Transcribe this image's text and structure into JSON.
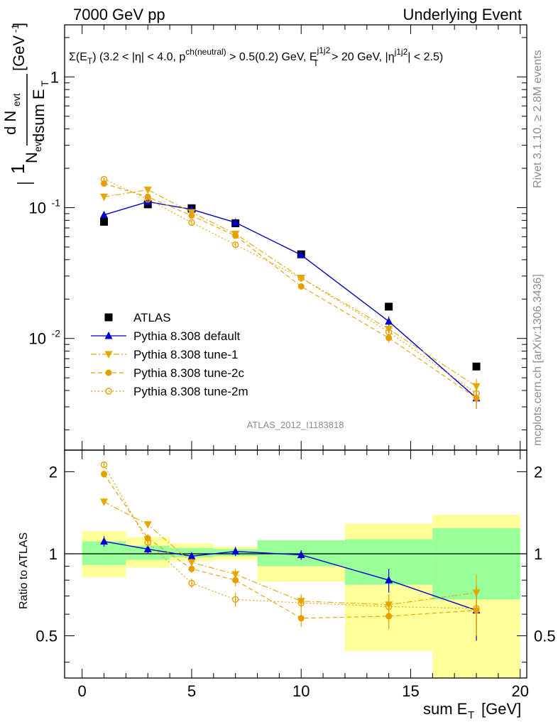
{
  "header": {
    "left": "7000 GeV pp",
    "right": "Underlying Event"
  },
  "side": {
    "rivet": "Rivet 3.1.10, ≥ 2.8M events",
    "mcplots": "mcplots.cern.ch [arXiv:1306.3436]"
  },
  "plot": {
    "condition": "Σ(E_T) (3.2 < |η| < 4.0, p^ch(neutral) > 0.5(0.2) GeV, E_T^j1j2 > 20 GeV, |η^j1j2| < 2.5)",
    "watermark": "ATLAS_2012_I1183818",
    "ylabel": "1/N_evt dN_evt/dsum E_T [GeV^-1]",
    "ratio_ylabel": "Ratio to ATLAS",
    "xlabel": "sum E_T [GeV]"
  },
  "chart_data": [
    {
      "type": "scatter",
      "panel": "main",
      "yscale": "log",
      "xlim": [
        -0.8,
        20.3
      ],
      "ylim": [
        0.0014,
        2.5
      ],
      "x_ticks": [
        0,
        5,
        10,
        15,
        20
      ],
      "y_ticks": [
        "10^-2",
        "10^-1",
        "1"
      ],
      "legend_position": "center-left",
      "series": [
        {
          "name": "ATLAS",
          "color": "#000000",
          "marker": "square",
          "x": [
            1,
            3,
            5,
            7,
            10,
            14,
            18
          ],
          "y": [
            0.078,
            0.106,
            0.099,
            0.076,
            0.044,
            0.0175,
            0.0061
          ],
          "yerr": [
            0.003,
            0.003,
            0.003,
            0.002,
            0.0015,
            0.0007,
            0.0003
          ]
        },
        {
          "name": "Pythia 8.308 default",
          "color": "#0000cc",
          "marker": "triangle-up",
          "line": "solid",
          "x": [
            1,
            3,
            5,
            7,
            10,
            14,
            18
          ],
          "y": [
            0.088,
            0.111,
            0.097,
            0.077,
            0.0435,
            0.0135,
            0.0035
          ],
          "yerr": [
            0.005,
            0.004,
            0.003,
            0.002,
            0.002,
            0.0012,
            0.0006
          ]
        },
        {
          "name": "Pythia 8.308 tune-1",
          "color": "#e5a800",
          "marker": "triangle-down",
          "line": "dashdot",
          "x": [
            1,
            3,
            5,
            7,
            10,
            14,
            18
          ],
          "y": [
            0.121,
            0.137,
            0.092,
            0.063,
            0.029,
            0.0118,
            0.0043
          ],
          "yerr": [
            0.004,
            0.004,
            0.003,
            0.002,
            0.0012,
            0.0008,
            0.0006
          ]
        },
        {
          "name": "Pythia 8.308 tune-2c",
          "color": "#e5a000",
          "marker": "circle",
          "line": "dashed",
          "x": [
            1,
            3,
            5,
            7,
            10,
            14,
            18
          ],
          "y": [
            0.153,
            0.121,
            0.087,
            0.061,
            0.025,
            0.0101,
            0.0035
          ],
          "yerr": [
            0.005,
            0.004,
            0.003,
            0.002,
            0.0012,
            0.0008,
            0.0006
          ]
        },
        {
          "name": "Pythia 8.308 tune-2m",
          "color": "#e5a000",
          "marker": "open-circle",
          "line": "dotted",
          "x": [
            1,
            3,
            5,
            7,
            10,
            14,
            18
          ],
          "y": [
            0.165,
            0.116,
            0.077,
            0.052,
            0.029,
            0.0112,
            0.0038
          ],
          "yerr": [
            0.005,
            0.004,
            0.003,
            0.002,
            0.0012,
            0.0008,
            0.0006
          ]
        }
      ]
    },
    {
      "type": "scatter",
      "panel": "ratio",
      "xlim": [
        -0.8,
        20.3
      ],
      "ylim": [
        0.35,
        2.4
      ],
      "y_ticks": [
        0.5,
        1,
        2
      ],
      "reference_line": 1,
      "bands": [
        {
          "x0": 0,
          "x1": 2,
          "inner": [
            0.91,
            1.11
          ],
          "outer": [
            0.82,
            1.21
          ]
        },
        {
          "x0": 2,
          "x1": 4,
          "inner": [
            0.95,
            1.07
          ],
          "outer": [
            0.89,
            1.15
          ]
        },
        {
          "x0": 4,
          "x1": 6,
          "inner": [
            0.97,
            1.05
          ],
          "outer": [
            0.94,
            1.09
          ]
        },
        {
          "x0": 6,
          "x1": 8,
          "inner": [
            0.98,
            1.04
          ],
          "outer": [
            0.95,
            1.06
          ]
        },
        {
          "x0": 8,
          "x1": 12,
          "inner": [
            0.9,
            1.12
          ],
          "outer": [
            0.79,
            1.12
          ]
        },
        {
          "x0": 12,
          "x1": 16,
          "inner": [
            0.77,
            1.13
          ],
          "outer": [
            0.44,
            1.29
          ]
        },
        {
          "x0": 16,
          "x1": 20,
          "inner": [
            0.68,
            1.24
          ],
          "outer": [
            0.35,
            1.39
          ]
        }
      ],
      "series": [
        {
          "name": "Pythia 8.308 default",
          "color": "#0000cc",
          "marker": "triangle-up",
          "line": "solid",
          "x": [
            1,
            3,
            5,
            7,
            10,
            14,
            18
          ],
          "y": [
            1.11,
            1.04,
            0.98,
            1.02,
            0.99,
            0.8,
            0.62
          ],
          "yerr": [
            0.05,
            0.04,
            0.03,
            0.04,
            0.04,
            0.08,
            0.14
          ]
        },
        {
          "name": "Pythia 8.308 tune-1",
          "color": "#e5a800",
          "marker": "triangle-down",
          "line": "dashdot",
          "x": [
            1,
            3,
            5,
            7,
            10,
            14,
            18
          ],
          "y": [
            1.55,
            1.28,
            0.93,
            0.84,
            0.67,
            0.65,
            0.72
          ],
          "yerr": [
            0.05,
            0.04,
            0.03,
            0.04,
            0.04,
            0.06,
            0.12
          ]
        },
        {
          "name": "Pythia 8.308 tune-2c",
          "color": "#e5a000",
          "marker": "circle",
          "line": "dashed",
          "x": [
            1,
            3,
            5,
            7,
            10,
            14,
            18
          ],
          "y": [
            1.96,
            1.14,
            0.88,
            0.8,
            0.58,
            0.59,
            0.62
          ],
          "yerr": [
            0.06,
            0.04,
            0.03,
            0.04,
            0.04,
            0.06,
            0.12
          ]
        },
        {
          "name": "Pythia 8.308 tune-2m",
          "color": "#e5a000",
          "marker": "open-circle",
          "line": "dotted",
          "x": [
            1,
            3,
            5,
            7,
            10,
            14,
            18
          ],
          "y": [
            2.12,
            1.1,
            0.78,
            0.68,
            0.66,
            0.64,
            0.63
          ],
          "yerr": [
            0.06,
            0.04,
            0.03,
            0.04,
            0.04,
            0.06,
            0.12
          ]
        }
      ]
    }
  ]
}
